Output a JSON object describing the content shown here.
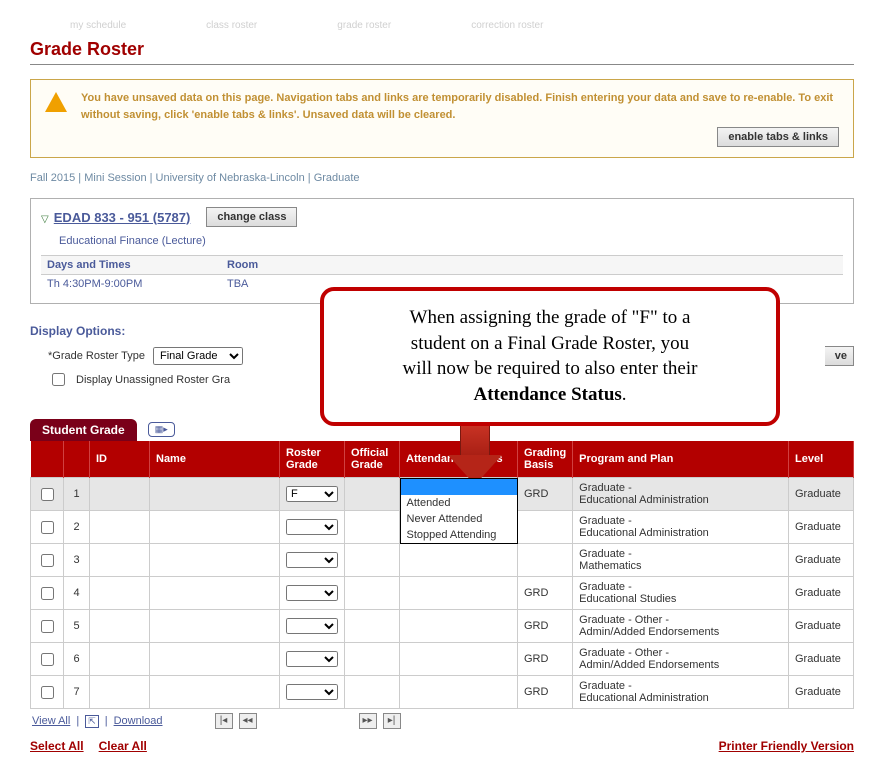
{
  "tabs": {
    "t1": "my schedule",
    "t2": "class roster",
    "t3": "grade roster",
    "t4": "correction roster"
  },
  "page_title": "Grade Roster",
  "warning": {
    "text": "You have unsaved data on this page. Navigation tabs and links are temporarily disabled. Finish entering your data and save to re-enable. To exit without saving, click 'enable tabs & links'. Unsaved data will be cleared.",
    "button": "enable tabs & links"
  },
  "context_line": "Fall 2015 | Mini Session | University of Nebraska-Lincoln | Graduate",
  "class": {
    "link": "EDAD 833 - 951 (5787)",
    "change_btn": "change class",
    "desc": "Educational Finance (Lecture)",
    "col_days": "Days and Times",
    "col_room": "Room",
    "days_val": "Th 4:30PM-9:00PM",
    "room_val": "TBA"
  },
  "display_options": {
    "heading": "Display Options:",
    "type_label": "*Grade Roster Type",
    "type_value": "Final Grade",
    "unassigned_label": "Display Unassigned Roster Gra",
    "truncated_btn": "ve"
  },
  "callout": {
    "line1": "When assigning the grade of \"F\" to a",
    "line2": "student on a Final Grade Roster, you",
    "line3": "will now be required to also enter their",
    "line4_bold": "Attendance Status",
    "line4_rest": "."
  },
  "roster": {
    "tab_label": "Student Grade",
    "columns": {
      "chk": "",
      "id": "ID",
      "name": "Name",
      "roster_grade": "Roster Grade",
      "official_grade": "Official Grade",
      "attendance": "Attendance Status",
      "basis": "Grading Basis",
      "program": "Program and Plan",
      "level": "Level"
    },
    "attendance_options": {
      "o1": "Attended",
      "o2": "Never Attended",
      "o3": "Stopped Attending"
    },
    "rows": [
      {
        "n": "1",
        "grade": "F",
        "basis": "GRD",
        "program": "Graduate -\nEducational Administration",
        "level": "Graduate",
        "att_open": true
      },
      {
        "n": "2",
        "grade": "",
        "basis": "",
        "program": "Graduate -\nEducational Administration",
        "level": "Graduate"
      },
      {
        "n": "3",
        "grade": "",
        "basis": "",
        "program": "Graduate -\nMathematics",
        "level": "Graduate"
      },
      {
        "n": "4",
        "grade": "",
        "basis": "GRD",
        "program": "Graduate -\nEducational Studies",
        "level": "Graduate"
      },
      {
        "n": "5",
        "grade": "",
        "basis": "GRD",
        "program": "Graduate - Other -\nAdmin/Added Endorsements",
        "level": "Graduate"
      },
      {
        "n": "6",
        "grade": "",
        "basis": "GRD",
        "program": "Graduate - Other -\nAdmin/Added Endorsements",
        "level": "Graduate"
      },
      {
        "n": "7",
        "grade": "",
        "basis": "GRD",
        "program": "Graduate -\nEducational Administration",
        "level": "Graduate"
      }
    ]
  },
  "pager": {
    "view_all": "View All",
    "download": "Download"
  },
  "bottom": {
    "select_all": "Select All",
    "clear_all": "Clear All",
    "printer": "Printer Friendly Version"
  }
}
